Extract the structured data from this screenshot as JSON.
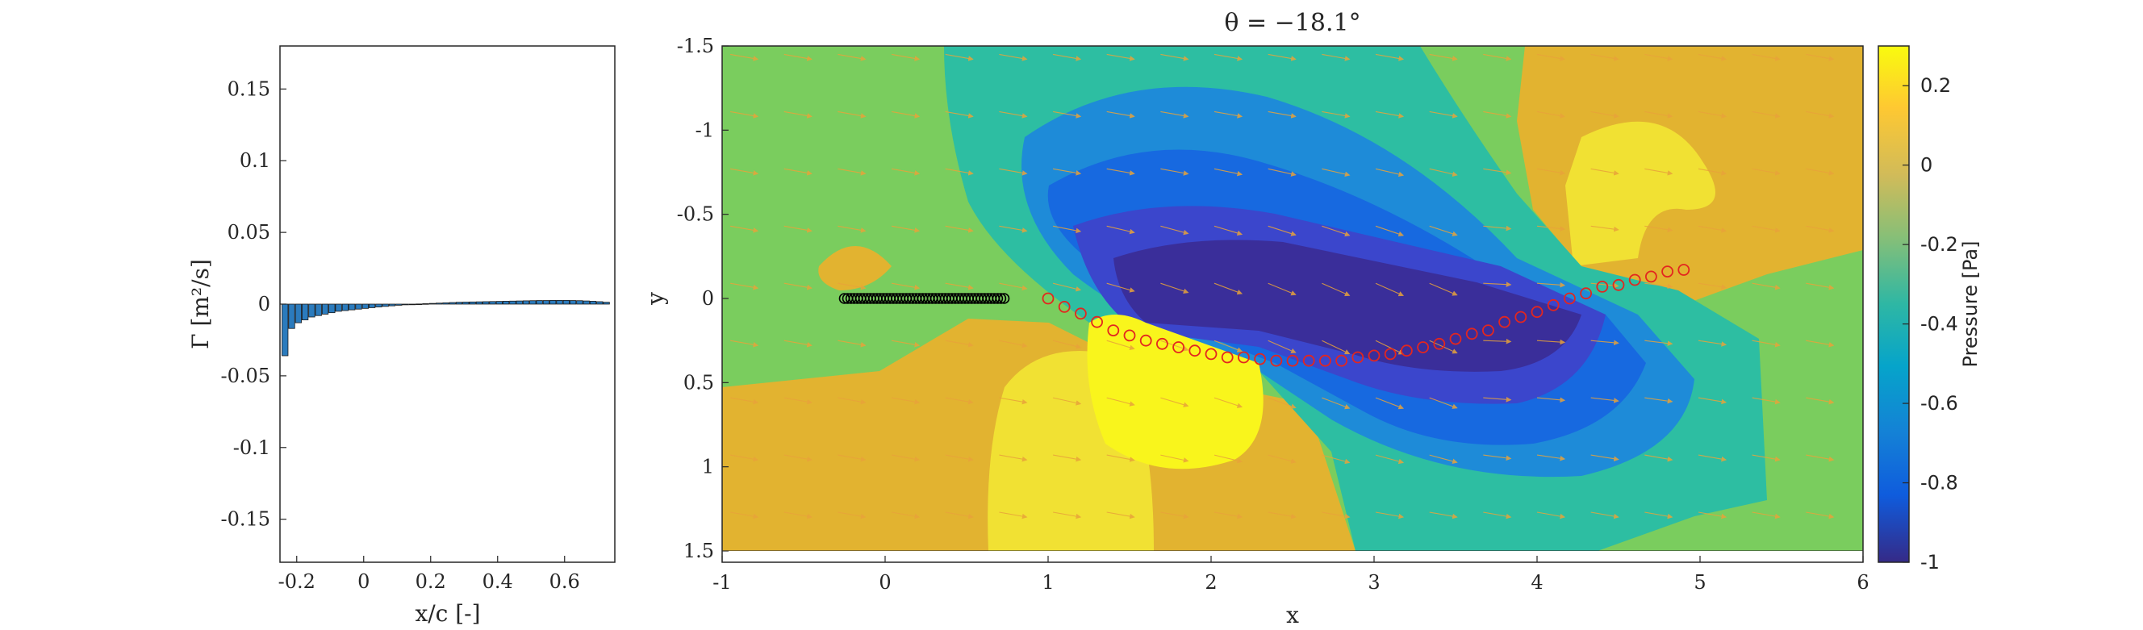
{
  "chart_data": [
    {
      "type": "bar",
      "xlabel": "x/c [-]",
      "ylabel": "Γ [m²/s]",
      "xlim": [
        -0.25,
        0.75
      ],
      "ylim": [
        -0.18,
        0.18
      ],
      "xticks": [
        "-0.2",
        "0",
        "0.2",
        "0.4",
        "0.6"
      ],
      "yticks": [
        "-0.15",
        "-0.1",
        "-0.05",
        "0",
        "0.05",
        "0.1",
        "0.15"
      ],
      "bar_color": "#2b7bbd",
      "x": [
        -0.235,
        -0.215,
        -0.195,
        -0.175,
        -0.155,
        -0.135,
        -0.115,
        -0.095,
        -0.075,
        -0.055,
        -0.035,
        -0.015,
        0.005,
        0.025,
        0.045,
        0.065,
        0.085,
        0.105,
        0.125,
        0.145,
        0.165,
        0.185,
        0.205,
        0.225,
        0.245,
        0.265,
        0.285,
        0.305,
        0.325,
        0.345,
        0.365,
        0.385,
        0.405,
        0.425,
        0.445,
        0.465,
        0.485,
        0.505,
        0.525,
        0.545,
        0.565,
        0.585,
        0.605,
        0.625,
        0.645,
        0.665,
        0.685,
        0.705,
        0.725
      ],
      "values": [
        -0.036,
        -0.017,
        -0.013,
        -0.011,
        -0.009,
        -0.008,
        -0.007,
        -0.006,
        -0.005,
        -0.0045,
        -0.004,
        -0.0035,
        -0.003,
        -0.0025,
        -0.002,
        -0.0016,
        -0.0012,
        -0.0008,
        -0.0005,
        -0.0002,
        0.0001,
        0.0003,
        0.0005,
        0.0007,
        0.0009,
        0.0011,
        0.0013,
        0.0014,
        0.0015,
        0.0016,
        0.0017,
        0.0018,
        0.0019,
        0.002,
        0.0021,
        0.0022,
        0.0023,
        0.0024,
        0.0025,
        0.0025,
        0.0026,
        0.0026,
        0.0026,
        0.0025,
        0.0024,
        0.0022,
        0.002,
        0.0017,
        0.0013
      ]
    },
    {
      "type": "heatmap",
      "title": "θ = −18.1°",
      "xlabel": "x",
      "ylabel": "y",
      "xlim": [
        -1,
        6
      ],
      "ylim": [
        -1.5,
        1.5
      ],
      "y_reversed": true,
      "xticks": [
        "-1",
        "0",
        "1",
        "2",
        "3",
        "4",
        "5",
        "6"
      ],
      "yticks": [
        "-1.5",
        "-1",
        "-0.5",
        "0",
        "0.5",
        "1",
        "1.5"
      ],
      "colorbar": {
        "label": "Pressure [Pa]",
        "range": [
          -1,
          0.3
        ],
        "ticks": [
          "0.2",
          "0",
          "-0.2",
          "-0.4",
          "-0.6",
          "-0.8",
          "-1"
        ],
        "colormap": "parula"
      },
      "contour_levels": [
        -0.9,
        -0.8,
        -0.7,
        -0.6,
        -0.5,
        -0.4,
        -0.3,
        -0.2,
        -0.1,
        0,
        0.1,
        0.2,
        0.3
      ],
      "airfoil_black": {
        "marker": "circle",
        "color": "#000000",
        "x": [
          -0.25,
          -0.23,
          -0.21,
          -0.19,
          -0.17,
          -0.15,
          -0.13,
          -0.11,
          -0.09,
          -0.07,
          -0.05,
          -0.03,
          -0.01,
          0.01,
          0.03,
          0.05,
          0.07,
          0.09,
          0.11,
          0.13,
          0.15,
          0.17,
          0.19,
          0.21,
          0.23,
          0.25,
          0.27,
          0.29,
          0.31,
          0.33,
          0.35,
          0.37,
          0.39,
          0.41,
          0.43,
          0.45,
          0.47,
          0.49,
          0.51,
          0.53,
          0.55,
          0.57,
          0.59,
          0.61,
          0.63,
          0.65,
          0.67,
          0.69,
          0.71,
          0.73
        ],
        "y": [
          0.0,
          0.0,
          0.0,
          0.0,
          0.0,
          0.0,
          0.0,
          0.0,
          0.0,
          0.0,
          0.0,
          0.0,
          0.0,
          0.0,
          0.0,
          0.0,
          0.0,
          0.0,
          0.0,
          0.0,
          0.0,
          0.0,
          0.0,
          0.0,
          0.0,
          0.0,
          0.0,
          0.0,
          0.0,
          0.0,
          0.0,
          0.0,
          0.0,
          0.0,
          0.0,
          0.0,
          0.0,
          0.0,
          0.0,
          0.0,
          0.0,
          0.0,
          0.0,
          0.0,
          0.0,
          0.0,
          0.0,
          0.0,
          0.0,
          0.0
        ]
      },
      "wake_red": {
        "marker": "circle",
        "color": "#e3261f",
        "x": [
          1.0,
          1.1,
          1.2,
          1.3,
          1.4,
          1.5,
          1.6,
          1.7,
          1.8,
          1.9,
          2.0,
          2.1,
          2.2,
          2.3,
          2.4,
          2.5,
          2.6,
          2.7,
          2.8,
          2.9,
          3.0,
          3.1,
          3.2,
          3.3,
          3.4,
          3.5,
          3.6,
          3.7,
          3.8,
          3.9,
          4.0,
          4.1,
          4.2,
          4.3,
          4.4,
          4.5,
          4.6,
          4.7,
          4.8,
          4.9
        ],
        "y": [
          0.0,
          0.05,
          0.09,
          0.14,
          0.19,
          0.22,
          0.25,
          0.27,
          0.29,
          0.31,
          0.33,
          0.35,
          0.35,
          0.36,
          0.37,
          0.37,
          0.37,
          0.37,
          0.37,
          0.35,
          0.34,
          0.33,
          0.31,
          0.29,
          0.27,
          0.24,
          0.21,
          0.19,
          0.14,
          0.11,
          0.08,
          0.04,
          0.0,
          -0.03,
          -0.07,
          -0.08,
          -0.11,
          -0.13,
          -0.16,
          -0.17
        ]
      }
    }
  ]
}
